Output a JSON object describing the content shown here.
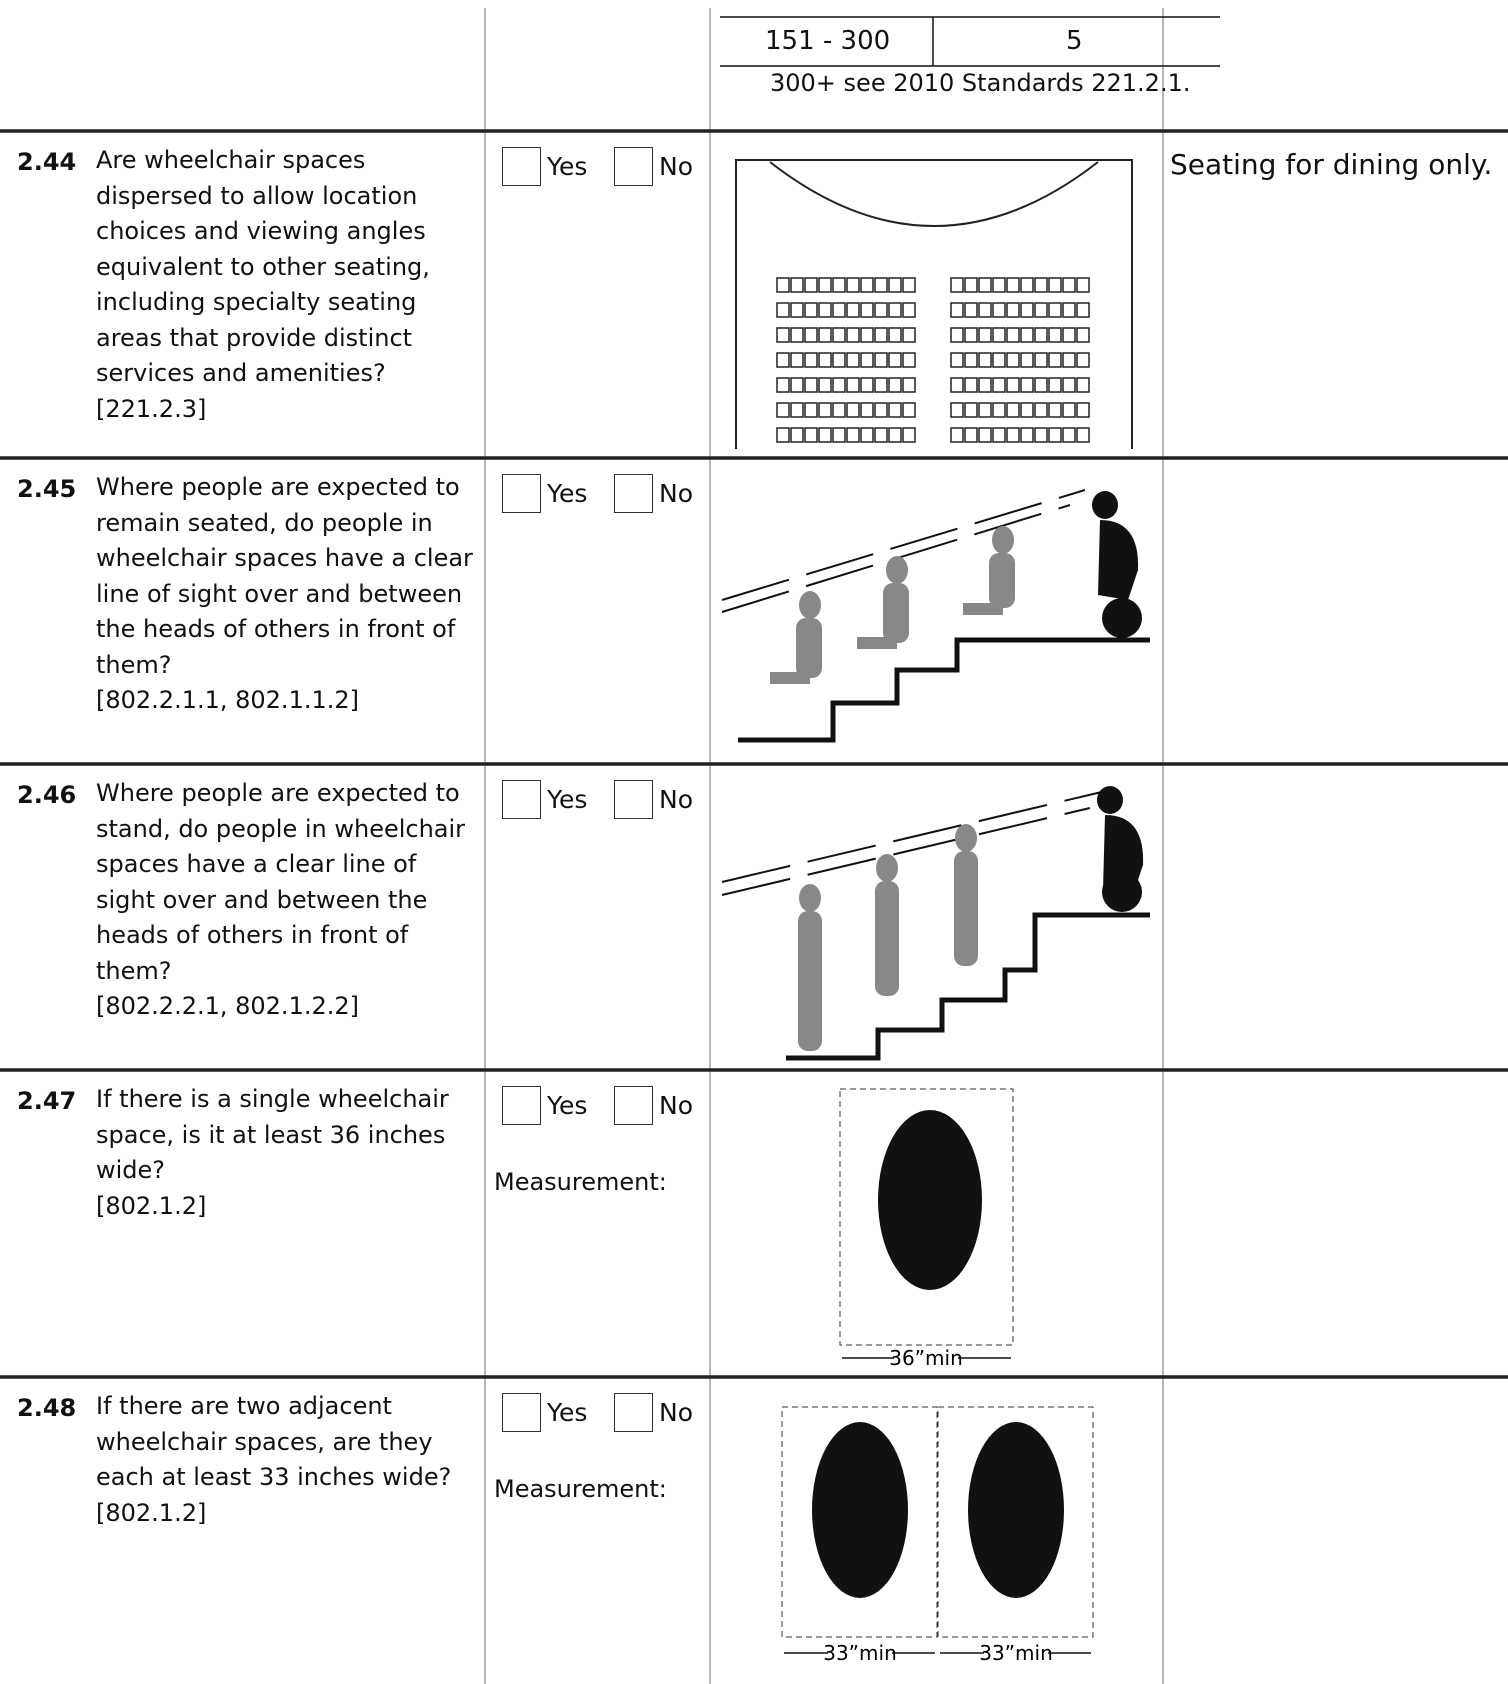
{
  "top_table": {
    "rows": [
      [
        "151 - 300",
        "5"
      ]
    ],
    "note": "300+ see 2010 Standards 221.2.1."
  },
  "questions": [
    {
      "number": "2.44",
      "text": "Are wheelchair spaces dispersed to allow location choices and viewing angles equivalent to other seating, including specialty seating areas that provide distinct services and amenities?",
      "citation": "[221.2.3]",
      "options": [
        "Yes",
        "No"
      ],
      "note": "Seating for dining only."
    },
    {
      "number": "2.45",
      "text": "Where people are expected to remain seated, do people in wheelchair spaces have a clear line of sight over and between the heads of others in front of them?",
      "citation": "[802.2.1.1, 802.1.1.2]",
      "options": [
        "Yes",
        "No"
      ]
    },
    {
      "number": "2.46",
      "text": "Where people are expected to stand, do people in wheelchair spaces have a clear line of sight over and between the heads of others in front of them?",
      "citation": "[802.2.2.1, 802.1.2.2]",
      "options": [
        "Yes",
        "No"
      ]
    },
    {
      "number": "2.47",
      "text": "If there is a single wheelchair space, is it at least 36 inches wide?",
      "citation": "[802.1.2]",
      "options": [
        "Yes",
        "No"
      ],
      "measurement": "Measurement:",
      "figure_labels": [
        "36”min"
      ]
    },
    {
      "number": "2.48",
      "text": "If there are two adjacent wheelchair spaces, are they each at least 33 inches wide?",
      "citation": "[802.1.2]",
      "options": [
        "Yes",
        "No"
      ],
      "measurement": "Measurement:",
      "figure_labels": [
        "33”min",
        "33”min"
      ]
    }
  ]
}
